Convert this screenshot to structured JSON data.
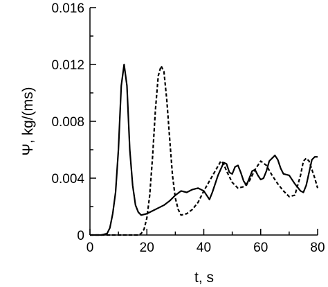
{
  "chart_data": {
    "type": "line",
    "title": "",
    "xlabel": "t, s",
    "ylabel": "Ψ, kg/(ms)",
    "xlim": [
      0,
      80
    ],
    "ylim": [
      0,
      0.016
    ],
    "grid": false,
    "x_ticks": [
      "0",
      "20",
      "40",
      "60",
      "80"
    ],
    "y_ticks": [
      "0",
      "0.004",
      "0.008",
      "0.012",
      "0.016"
    ],
    "series": [
      {
        "style": "solid",
        "color": "#000000",
        "points": [
          [
            0,
            0
          ],
          [
            4,
            0
          ],
          [
            6,
            0.0001
          ],
          [
            7,
            0.0005
          ],
          [
            8,
            0.0015
          ],
          [
            9,
            0.003
          ],
          [
            10,
            0.006
          ],
          [
            11,
            0.0105
          ],
          [
            12,
            0.012
          ],
          [
            13,
            0.0105
          ],
          [
            14,
            0.006
          ],
          [
            15,
            0.0035
          ],
          [
            16,
            0.0021
          ],
          [
            17,
            0.0016
          ],
          [
            18,
            0.0014
          ],
          [
            20,
            0.0015
          ],
          [
            22,
            0.0017
          ],
          [
            24,
            0.0019
          ],
          [
            26,
            0.0021
          ],
          [
            28,
            0.0024
          ],
          [
            30,
            0.0028
          ],
          [
            32,
            0.0031
          ],
          [
            34,
            0.003
          ],
          [
            36,
            0.0032
          ],
          [
            38,
            0.0033
          ],
          [
            40,
            0.0031
          ],
          [
            42,
            0.0025
          ],
          [
            43,
            0.003
          ],
          [
            45,
            0.0042
          ],
          [
            47,
            0.0051
          ],
          [
            48,
            0.005
          ],
          [
            49,
            0.0044
          ],
          [
            50,
            0.0043
          ],
          [
            51,
            0.0048
          ],
          [
            52,
            0.0049
          ],
          [
            53,
            0.0044
          ],
          [
            54,
            0.0038
          ],
          [
            55,
            0.0035
          ],
          [
            56,
            0.004
          ],
          [
            57,
            0.0045
          ],
          [
            58,
            0.0046
          ],
          [
            59,
            0.0042
          ],
          [
            60,
            0.0039
          ],
          [
            61,
            0.004
          ],
          [
            62,
            0.0045
          ],
          [
            63,
            0.0052
          ],
          [
            65,
            0.0056
          ],
          [
            66,
            0.0053
          ],
          [
            67,
            0.0047
          ],
          [
            68,
            0.0043
          ],
          [
            70,
            0.0042
          ],
          [
            72,
            0.0036
          ],
          [
            74,
            0.0031
          ],
          [
            75,
            0.003
          ],
          [
            76,
            0.0035
          ],
          [
            77,
            0.0044
          ],
          [
            78,
            0.0053
          ],
          [
            79,
            0.0055
          ],
          [
            80,
            0.0055
          ]
        ]
      },
      {
        "style": "dashed",
        "color": "#000000",
        "points": [
          [
            0,
            0
          ],
          [
            17,
            0
          ],
          [
            18,
            0.0001
          ],
          [
            19,
            0.0004
          ],
          [
            20,
            0.0012
          ],
          [
            21,
            0.0028
          ],
          [
            22,
            0.0055
          ],
          [
            23,
            0.0088
          ],
          [
            24,
            0.0112
          ],
          [
            25,
            0.0119
          ],
          [
            26,
            0.0115
          ],
          [
            27,
            0.0095
          ],
          [
            28,
            0.0068
          ],
          [
            29,
            0.0042
          ],
          [
            30,
            0.0026
          ],
          [
            31,
            0.0018
          ],
          [
            32,
            0.0014
          ],
          [
            34,
            0.0015
          ],
          [
            36,
            0.0018
          ],
          [
            38,
            0.0023
          ],
          [
            40,
            0.0031
          ],
          [
            42,
            0.0038
          ],
          [
            44,
            0.0045
          ],
          [
            46,
            0.0052
          ],
          [
            47,
            0.005
          ],
          [
            48,
            0.0045
          ],
          [
            50,
            0.0037
          ],
          [
            52,
            0.0033
          ],
          [
            54,
            0.0034
          ],
          [
            56,
            0.0038
          ],
          [
            58,
            0.0046
          ],
          [
            60,
            0.0052
          ],
          [
            62,
            0.0049
          ],
          [
            64,
            0.0042
          ],
          [
            66,
            0.0036
          ],
          [
            68,
            0.0031
          ],
          [
            70,
            0.0027
          ],
          [
            72,
            0.0028
          ],
          [
            74,
            0.0042
          ],
          [
            75,
            0.0052
          ],
          [
            76,
            0.0054
          ],
          [
            77,
            0.0052
          ],
          [
            78,
            0.0046
          ],
          [
            79,
            0.004
          ],
          [
            80,
            0.0033
          ]
        ]
      }
    ]
  }
}
